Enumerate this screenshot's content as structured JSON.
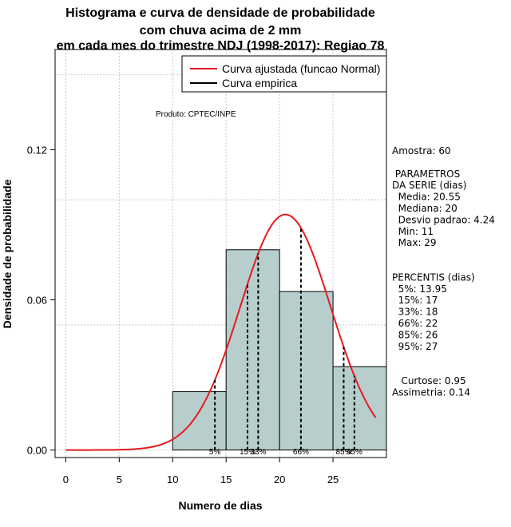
{
  "chart_data": {
    "type": "bar",
    "title_lines": [
      "Histograma e curva de densidade de probabilidade",
      "com chuva acima de 2 mm",
      "em cada mes do trimestre NDJ (1998-2017): Regiao 78"
    ],
    "xlabel": "Numero de dias",
    "ylabel": "Densidade de probabilidade",
    "xlim": [
      -1,
      30
    ],
    "ylim": [
      -0.003,
      0.16
    ],
    "x_ticks": [
      0,
      5,
      10,
      15,
      20,
      25
    ],
    "y_ticks": [
      0.0,
      0.06,
      0.12
    ],
    "y_tick_labels": [
      "0.00",
      "0.06",
      "0.12"
    ],
    "grid": true,
    "bins": [
      {
        "start": 10,
        "end": 15,
        "density": 0.0233
      },
      {
        "start": 15,
        "end": 20,
        "density": 0.08
      },
      {
        "start": 20,
        "end": 25,
        "density": 0.0633
      },
      {
        "start": 25,
        "end": 30,
        "density": 0.0333
      }
    ],
    "normal_fit": {
      "mean": 20.55,
      "sd": 4.24,
      "x_min": 0,
      "x_max": 29
    },
    "percentile_lines": [
      {
        "x": 13.95,
        "label": "5%"
      },
      {
        "x": 17,
        "label": "15%"
      },
      {
        "x": 18,
        "label": "33%"
      },
      {
        "x": 22,
        "label": "66%"
      },
      {
        "x": 26,
        "label": "85%"
      },
      {
        "x": 27,
        "label": "95%"
      }
    ],
    "legend": {
      "position": "top-right",
      "entries": [
        {
          "label": "Curva ajustada (funcao Normal)",
          "color": "#e8191f"
        },
        {
          "label": "Curva empirica",
          "color": "#000000"
        }
      ]
    },
    "annotation": "Produto: CPTEC/INPE",
    "side_text": [
      "Amostra: 60",
      "",
      " PARAMETROS",
      "DA SERIE (dias)",
      "  Media: 20.55",
      "  Mediana: 20",
      "  Desvio padrao: 4.24",
      "  Min: 11",
      "  Max: 29",
      "",
      "",
      "PERCENTIS (dias)",
      "  5%: 13.95",
      "  15%: 17",
      "  33%: 18",
      "  66%: 22",
      "  85%: 26",
      "  95%: 27",
      "",
      "",
      "   Curtose: 0.95",
      "Assimetria: 0.14"
    ],
    "colors": {
      "bar_fill": "#b7cecd",
      "curve": "#e8191f",
      "grid": "#c8c8c8"
    }
  }
}
